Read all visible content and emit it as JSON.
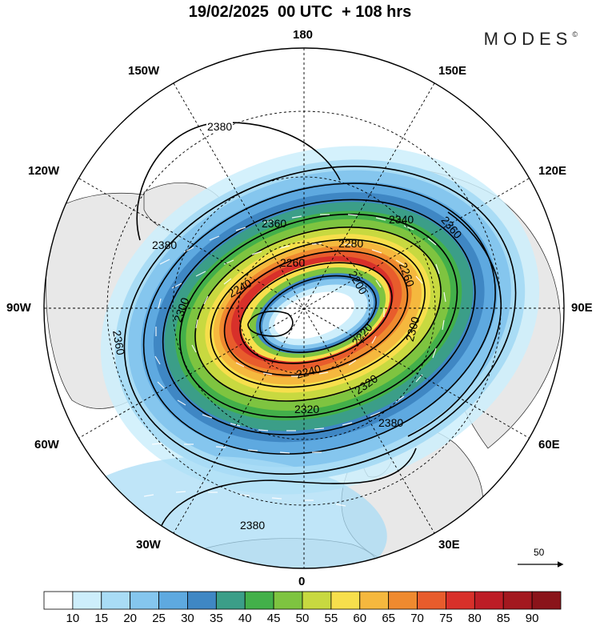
{
  "header": {
    "title": "19/02/2025  00 UTC  + 108 hrs",
    "brand": "MODES",
    "brand_mark": "©"
  },
  "map": {
    "projection": "north-polar-stereographic",
    "longitude_labels": {
      "top": "180",
      "bottom": "0",
      "left": "90W",
      "right": "90E",
      "upper_left_1": "150W",
      "upper_left_2": "120W",
      "lower_left_1": "60W",
      "lower_left_2": "30W",
      "upper_right_1": "150E",
      "upper_right_2": "120E",
      "lower_right_1": "60E",
      "lower_right_2": "30E"
    },
    "contour_labels": [
      "2380",
      "2380",
      "2360",
      "2340",
      "2360",
      "2280",
      "2260",
      "2240",
      "2260",
      "2200",
      "2220",
      "2240",
      "2300",
      "2320",
      "2320",
      "2300",
      "2360",
      "2380",
      "2380"
    ],
    "wind_vector_reference": "50",
    "colors": {
      "land": "#e8e8e8",
      "ocean": "#ffffff",
      "contour": "#000000",
      "vector": "#ffffff"
    }
  },
  "colorbar": {
    "ticks": [
      "10",
      "15",
      "20",
      "25",
      "30",
      "35",
      "40",
      "45",
      "50",
      "55",
      "60",
      "65",
      "70",
      "75",
      "80",
      "85",
      "90"
    ],
    "colors": [
      "#ffffff",
      "#cdeefb",
      "#a9dcf5",
      "#85c6ee",
      "#5ea9e0",
      "#3f87c4",
      "#3b9e88",
      "#43b04a",
      "#7ec440",
      "#c8d940",
      "#f7df4c",
      "#f5b83e",
      "#ef8a2f",
      "#e85c2c",
      "#d8302a",
      "#bd1d26",
      "#a3181f",
      "#8a141a"
    ]
  }
}
